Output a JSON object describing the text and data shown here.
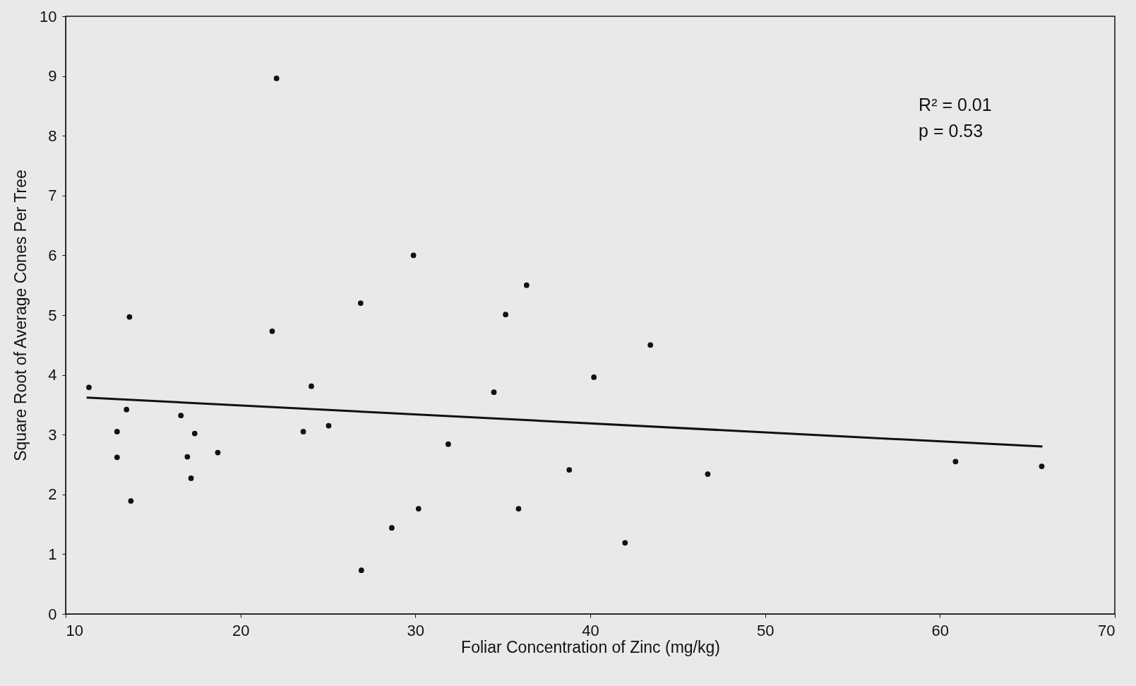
{
  "chart_data": {
    "type": "scatter",
    "xlabel": "Foliar Concentration of Zinc (mg/kg)",
    "ylabel": "Square Root of Average Cones Per Tree",
    "xlim": [
      10,
      70
    ],
    "ylim": [
      0,
      10
    ],
    "xticks": [
      10,
      20,
      30,
      40,
      50,
      60,
      70
    ],
    "yticks": [
      0,
      1,
      2,
      3,
      4,
      5,
      6,
      7,
      8,
      9,
      10
    ],
    "grid": false,
    "annotations": [
      "R² = 0.01",
      "p = 0.53"
    ],
    "series": [
      {
        "marker": "circle",
        "color": "#111111",
        "x": [
          11.33,
          12.94,
          12.94,
          13.48,
          13.65,
          13.73,
          16.59,
          16.96,
          17.17,
          17.38,
          18.7,
          21.81,
          22.06,
          23.59,
          24.05,
          25.04,
          26.87,
          26.91,
          28.65,
          29.89,
          30.18,
          31.88,
          34.49,
          35.16,
          35.9,
          36.36,
          38.8,
          40.21,
          41.99,
          43.44,
          46.72,
          60.89,
          65.82
        ],
        "values": [
          3.79,
          3.05,
          2.62,
          3.42,
          4.97,
          1.89,
          3.32,
          2.63,
          2.27,
          3.02,
          2.7,
          4.73,
          8.96,
          3.05,
          3.81,
          3.15,
          5.2,
          0.73,
          1.44,
          6.0,
          1.76,
          2.84,
          3.71,
          5.01,
          1.76,
          5.5,
          2.41,
          3.96,
          1.19,
          4.5,
          2.34,
          2.55,
          2.47
        ]
      },
      {
        "type": "line",
        "color": "#111111",
        "x": [
          11.2,
          65.86
        ],
        "values": [
          3.62,
          2.8
        ]
      }
    ]
  }
}
